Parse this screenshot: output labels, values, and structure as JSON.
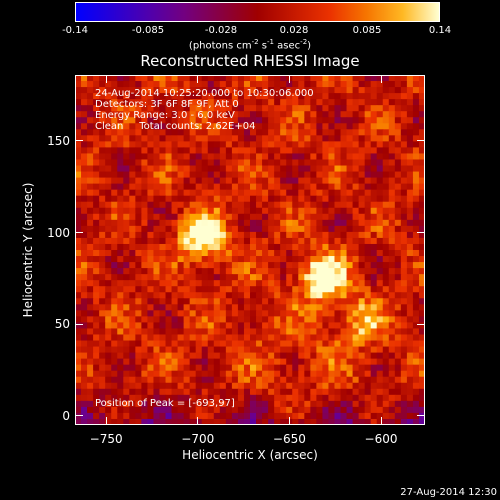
{
  "chart_data": {
    "type": "heatmap",
    "title": "Reconstructed RHESSI Image",
    "xlabel": "Heliocentric X (arcsec)",
    "ylabel": "Heliocentric Y (arcsec)",
    "xlim": [
      -767,
      -576
    ],
    "ylim": [
      -5,
      186
    ],
    "x_ticks": [
      -750,
      -700,
      -650,
      -600
    ],
    "y_ticks": [
      0,
      50,
      100,
      150
    ],
    "colorbar": {
      "range": [
        -0.14,
        0.14
      ],
      "ticks": [
        "-0.14",
        "-0.085",
        "-0.028",
        "0.028",
        "0.085",
        "0.14"
      ],
      "unit_main": "(photons cm",
      "unit_exp1": "-2",
      "unit_mid": " s",
      "unit_exp2": "-1",
      "unit_end": " asec",
      "unit_exp3": "-2",
      "unit_close": ")"
    },
    "sources": [
      {
        "x": -697,
        "y": 97,
        "peak": 0.14
      },
      {
        "x": -632,
        "y": 76,
        "peak": 0.13
      },
      {
        "x": -612,
        "y": 52,
        "peak": 0.07
      }
    ],
    "info_lines": [
      "24-Aug-2014 10:25:20.000 to 10:30:06.000",
      "Detectors: 3F 6F 8F 9F, Att 0",
      "Energy Range: 3.0 - 6.0 keV",
      "Clean     Total counts: 2.62E+04"
    ],
    "peak_label": "Position of Peak = [-693,97]",
    "timestamp": "27-Aug-2014 12:30"
  }
}
